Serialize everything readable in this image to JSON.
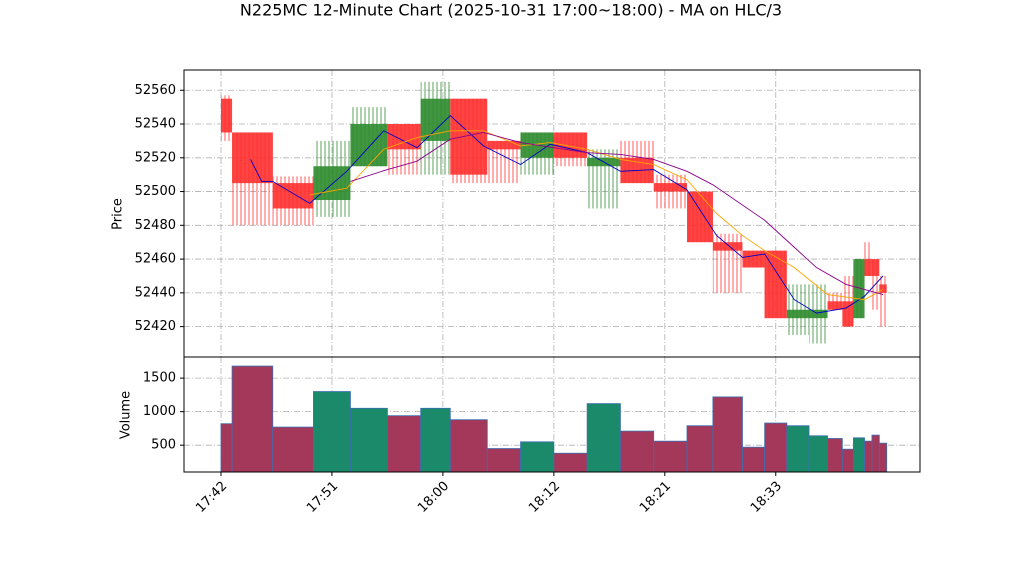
{
  "chart_data": {
    "type": "candlestick",
    "title": "N225MC 12-Minute Chart (2025-10-31 17:00~18:00) - MA on HLC/3",
    "ylabel": "Price",
    "volume_label": "Volume",
    "bins": [
      0,
      3,
      14,
      25,
      35,
      45,
      54,
      62,
      72,
      81,
      90,
      99,
      108,
      117,
      126,
      133,
      141,
      147,
      153,
      159,
      164,
      168,
      171,
      174,
      176,
      178,
      180
    ],
    "open": [
      52555,
      52535,
      52505,
      52495,
      52515,
      52540,
      52530,
      52555,
      52530,
      52520,
      52535,
      52515,
      52520,
      52505,
      52500,
      52470,
      52465,
      52465,
      52425,
      52425,
      52435,
      52435,
      52425,
      52460,
      52460,
      52445
    ],
    "high": [
      52557,
      52535,
      52509,
      52530,
      52550,
      52540,
      52565,
      52555,
      52530,
      52535,
      52535,
      52525,
      52530,
      52510,
      52500,
      52475,
      52465,
      52465,
      52445,
      52445,
      52440,
      52450,
      52460,
      52470,
      52460,
      52450
    ],
    "low": [
      52530,
      52480,
      52480,
      52485,
      52515,
      52510,
      52510,
      52505,
      52505,
      52510,
      52515,
      52490,
      52505,
      52490,
      52470,
      52440,
      52455,
      52425,
      52415,
      52410,
      52430,
      52420,
      52425,
      52450,
      52430,
      52420
    ],
    "close": [
      52535,
      52505,
      52490,
      52515,
      52540,
      52525,
      52555,
      52510,
      52525,
      52535,
      52520,
      52520,
      52505,
      52500,
      52470,
      52465,
      52455,
      52425,
      52430,
      52430,
      52430,
      52420,
      52460,
      52450,
      52450,
      52440
    ],
    "volume": [
      820,
      1680,
      770,
      1300,
      1050,
      940,
      1050,
      880,
      450,
      550,
      380,
      1120,
      710,
      560,
      790,
      1220,
      470,
      830,
      790,
      640,
      600,
      440,
      610,
      560,
      650,
      530
    ],
    "up_color": "#2e8b2e",
    "down_color": "#ff3030",
    "volume_up_color": "#1a8a6a",
    "volume_down_color": "#a3385a",
    "volume_edge_color": "#3a6fb0",
    "series": [
      {
        "color": "#0000cc",
        "x": [
          8,
          11,
          14,
          24,
          34,
          44,
          53,
          62,
          71,
          81,
          89,
          99,
          108,
          117,
          126,
          134,
          141,
          147,
          155,
          161,
          169,
          174,
          179
        ],
        "values": [
          52519,
          52506,
          52506,
          52493,
          52512,
          52536,
          52526,
          52545,
          52527,
          52516,
          52528,
          52523,
          52512,
          52513,
          52501,
          52474,
          52461,
          52463,
          52436,
          52428,
          52431,
          52438,
          52450
        ]
      },
      {
        "color": "#ffa500",
        "x": [
          24,
          34,
          44,
          53,
          62,
          71,
          81,
          89,
          99,
          108,
          117,
          126,
          134,
          141,
          147,
          155,
          164,
          174,
          179
        ],
        "values": [
          52498,
          52502,
          52525,
          52532,
          52536,
          52536,
          52527,
          52529,
          52525,
          52519,
          52516,
          52507,
          52487,
          52474,
          52465,
          52455,
          52439,
          52436,
          52442
        ]
      },
      {
        "color": "#8b008b",
        "x": [
          35,
          45,
          53,
          62,
          71,
          81,
          90,
          99,
          108,
          117,
          126,
          133,
          147,
          155,
          161,
          169,
          174,
          179
        ],
        "values": [
          52506,
          52513,
          52518,
          52531,
          52535,
          52529,
          52526,
          52523,
          52522,
          52519,
          52512,
          52504,
          52483,
          52467,
          52455,
          52445,
          52442,
          52439
        ]
      }
    ],
    "xlim": [
      -10,
      189
    ],
    "xticks": [
      {
        "value": 0,
        "label": "17:42"
      },
      {
        "value": 30,
        "label": "17:51"
      },
      {
        "value": 60,
        "label": "18:00"
      },
      {
        "value": 90,
        "label": "18:12"
      },
      {
        "value": 120,
        "label": "18:21"
      },
      {
        "value": 150,
        "label": "18:33"
      }
    ],
    "ylim": [
      52402,
      52572
    ],
    "yticks": [
      52420,
      52440,
      52460,
      52480,
      52500,
      52520,
      52540,
      52560
    ],
    "volume_ylim": [
      100,
      1815
    ],
    "volume_yticks": [
      500,
      1000,
      1500
    ],
    "grid": true
  }
}
